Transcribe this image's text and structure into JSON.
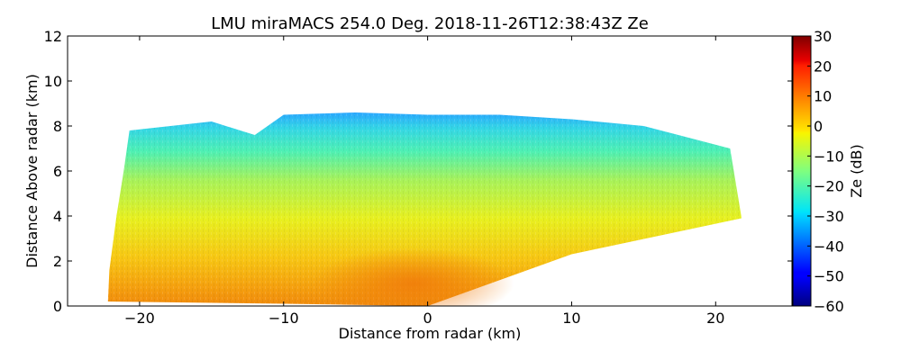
{
  "chart_data": {
    "type": "heatmap",
    "title": "LMU miraMACS 254.0 Deg. 2018-11-26T12:38:43Z  Ze",
    "xlabel": "Distance from radar (km)",
    "ylabel": "Distance Above radar  (km)",
    "colorbar_label": "Ze (dB)",
    "xlim": [
      -25,
      25.3
    ],
    "ylim": [
      0,
      12
    ],
    "x_ticks": [
      -20,
      -10,
      0,
      10,
      20
    ],
    "x_tick_labels": [
      "−20",
      "−10",
      "0",
      "10",
      "20"
    ],
    "y_ticks": [
      0,
      2,
      4,
      6,
      8,
      10,
      12
    ],
    "y_tick_labels": [
      "0",
      "2",
      "4",
      "6",
      "8",
      "10",
      "12"
    ],
    "colorbar_range": [
      -60,
      30
    ],
    "colorbar_ticks": [
      -60,
      -50,
      -40,
      -30,
      -20,
      -10,
      0,
      10,
      20,
      30
    ],
    "colorbar_tick_labels": [
      "−60",
      "−50",
      "−40",
      "−30",
      "−20",
      "−10",
      "0",
      "10",
      "20",
      "30"
    ],
    "colormap": "jet",
    "scan_azimuth_deg": 254.0,
    "echo_region_outline_km": [
      [
        -22.2,
        0.2
      ],
      [
        -22.1,
        1.6
      ],
      [
        -21.6,
        4.0
      ],
      [
        -21.1,
        6.0
      ],
      [
        -20.7,
        7.8
      ],
      [
        -15.0,
        8.2
      ],
      [
        -12.0,
        7.6
      ],
      [
        -10.0,
        8.5
      ],
      [
        -5.0,
        8.6
      ],
      [
        0.0,
        8.5
      ],
      [
        5.0,
        8.5
      ],
      [
        10.0,
        8.3
      ],
      [
        15.0,
        8.0
      ],
      [
        21.0,
        7.0
      ],
      [
        21.8,
        3.9
      ],
      [
        10.0,
        2.3
      ],
      [
        0.0,
        0.0
      ],
      [
        -10.0,
        0.1
      ],
      [
        -22.2,
        0.2
      ]
    ],
    "reflectivity_layers_dBZ": [
      {
        "height_km": [
          0,
          2
        ],
        "value": 6
      },
      {
        "height_km": [
          2,
          4
        ],
        "value": -2
      },
      {
        "height_km": [
          4,
          6
        ],
        "value": -10
      },
      {
        "height_km": [
          6,
          7.5
        ],
        "value": -18
      },
      {
        "height_km": [
          7.5,
          8.6
        ],
        "value": -27
      }
    ]
  }
}
